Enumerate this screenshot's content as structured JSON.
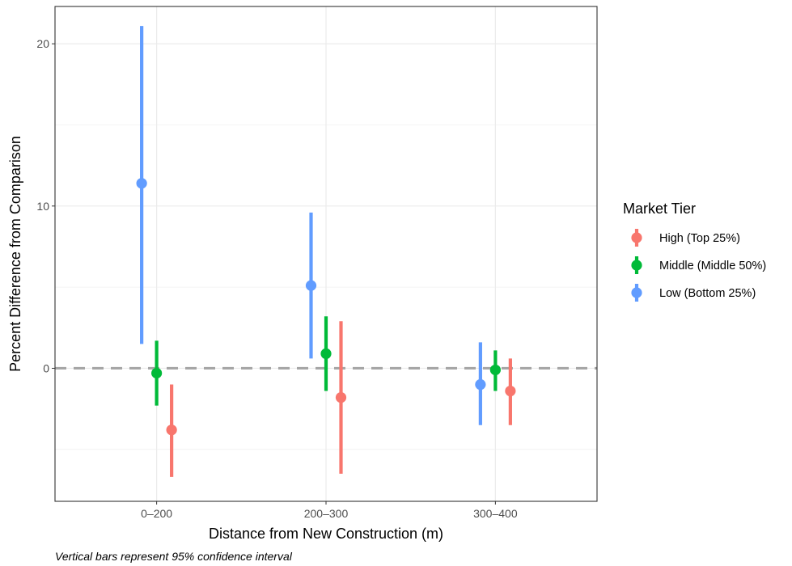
{
  "chart_data": {
    "type": "scatter",
    "subtype": "point-range",
    "categories": [
      "0–200",
      "200–300",
      "300–400"
    ],
    "xlabel": "Distance from New Construction (m)",
    "ylabel": "Percent Difference from Comparison",
    "ylim": [
      -8.2,
      22.3
    ],
    "yticks": [
      0,
      10,
      20
    ],
    "reference_line": {
      "y": 0,
      "style": "dashed",
      "color": "#a6a6a6"
    },
    "grid": true,
    "legend": {
      "title": "Market Tier",
      "position": "right"
    },
    "caption": "Vertical bars represent 95% confidence interval",
    "series": [
      {
        "name": "High (Top 25%)",
        "color": "#F8766D",
        "values": [
          -3.8,
          -1.8,
          -1.4
        ],
        "lower": [
          -6.7,
          -6.5,
          -3.5
        ],
        "upper": [
          -1.0,
          2.9,
          0.6
        ]
      },
      {
        "name": "Middle (Middle 50%)",
        "color": "#00BA38",
        "values": [
          -0.3,
          0.9,
          -0.1
        ],
        "lower": [
          -2.3,
          -1.4,
          -1.4
        ],
        "upper": [
          1.7,
          3.2,
          1.1
        ]
      },
      {
        "name": "Low (Bottom 25%)",
        "color": "#619CFF",
        "values": [
          11.4,
          5.1,
          -1.0
        ],
        "lower": [
          1.5,
          0.6,
          -3.5
        ],
        "upper": [
          21.1,
          9.6,
          1.6
        ]
      }
    ]
  }
}
